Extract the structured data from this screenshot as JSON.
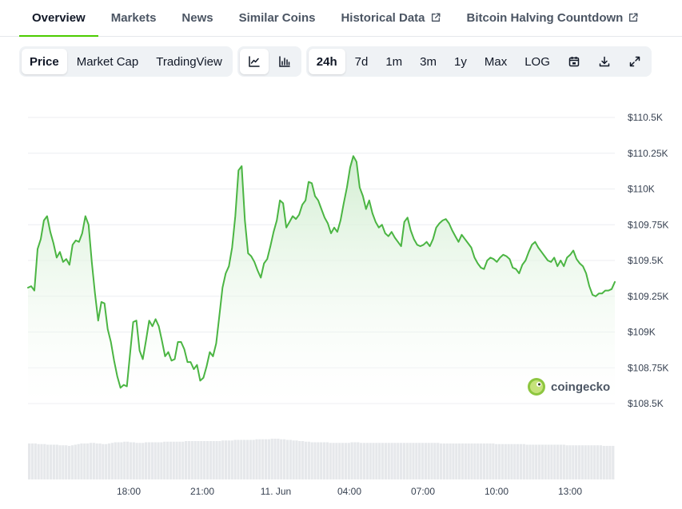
{
  "tabs": [
    {
      "label": "Overview",
      "active": true,
      "external": false
    },
    {
      "label": "Markets",
      "active": false,
      "external": false
    },
    {
      "label": "News",
      "active": false,
      "external": false
    },
    {
      "label": "Similar Coins",
      "active": false,
      "external": false
    },
    {
      "label": "Historical Data",
      "active": false,
      "external": true
    },
    {
      "label": "Bitcoin Halving Countdown",
      "active": false,
      "external": true
    }
  ],
  "toolbar": {
    "metric_options": [
      "Price",
      "Market Cap",
      "TradingView"
    ],
    "selected_metric": "Price",
    "chart_style_icons": [
      "line-chart-icon",
      "candlestick-chart-icon"
    ],
    "selected_style": "line-chart-icon",
    "range_options": [
      "24h",
      "7d",
      "1m",
      "3m",
      "1y",
      "Max",
      "LOG"
    ],
    "selected_range": "24h",
    "tool_icons": [
      "calendar-icon",
      "download-icon",
      "expand-icon"
    ]
  },
  "colors": {
    "line": "#4bb543",
    "fill_top": "#cdeccc",
    "accent": "#4bcc00",
    "volume": "#e6e8eb"
  },
  "watermark": "coingecko",
  "chart_data": {
    "type": "area",
    "series": [
      {
        "values": [
          109310,
          109320,
          109290,
          109580,
          109650,
          109780,
          109810,
          109700,
          109620,
          109520,
          109560,
          109490,
          109510,
          109470,
          109610,
          109640,
          109630,
          109690,
          109810,
          109750,
          109490,
          109270,
          109080,
          109210,
          109200,
          109020,
          108930,
          108800,
          108690,
          108610,
          108630,
          108620,
          108850,
          109070,
          109080,
          108870,
          108810,
          108940,
          109080,
          109040,
          109090,
          109040,
          108940,
          108830,
          108860,
          108800,
          108810,
          108930,
          108930,
          108880,
          108790,
          108790,
          108740,
          108770,
          108660,
          108680,
          108760,
          108860,
          108830,
          108920,
          109110,
          109310,
          109410,
          109460,
          109590,
          109810,
          110130,
          110160,
          109780,
          109550,
          109530,
          109490,
          109430,
          109380,
          109480,
          109510,
          109600,
          109700,
          109780,
          109920,
          109900,
          109730,
          109770,
          109810,
          109790,
          109820,
          109890,
          109920,
          110050,
          110040,
          109950,
          109920,
          109860,
          109800,
          109760,
          109690,
          109730,
          109700,
          109780,
          109900,
          110010,
          110150,
          110230,
          110190,
          110010,
          109950,
          109860,
          109920,
          109830,
          109770,
          109730,
          109750,
          109690,
          109670,
          109700,
          109660,
          109630,
          109600,
          109770,
          109800,
          109710,
          109650,
          109610,
          109600,
          109610,
          109630,
          109600,
          109650,
          109730,
          109760,
          109780,
          109790,
          109760,
          109710,
          109670,
          109630,
          109680,
          109650,
          109620,
          109590,
          109520,
          109480,
          109450,
          109440,
          109500,
          109520,
          109510,
          109490,
          109520,
          109540,
          109530,
          109510,
          109450,
          109440,
          109410,
          109470,
          109500,
          109560,
          109610,
          109630,
          109590,
          109560,
          109530,
          109500,
          109490,
          109520,
          109460,
          109500,
          109460,
          109520,
          109540,
          109570,
          109510,
          109480,
          109460,
          109410,
          109320,
          109260,
          109250,
          109270,
          109270,
          109290,
          109290,
          109300,
          109350
        ]
      }
    ],
    "volume": [
      60,
      60,
      60,
      59,
      59,
      59,
      58,
      58,
      58,
      58,
      57,
      57,
      57,
      56,
      57,
      58,
      59,
      60,
      60,
      60,
      61,
      61,
      60,
      60,
      59,
      59,
      60,
      61,
      62,
      62,
      62,
      63,
      63,
      62,
      62,
      61,
      61,
      61,
      62,
      62,
      62,
      62,
      62,
      62,
      63,
      63,
      63,
      63,
      63,
      63,
      63,
      64,
      64,
      64,
      64,
      64,
      64,
      64,
      64,
      64,
      64,
      64,
      64,
      65,
      65,
      65,
      65,
      66,
      66,
      66,
      66,
      66,
      66,
      66,
      67,
      67,
      67,
      67,
      67,
      68,
      68,
      68,
      67,
      67,
      66,
      66,
      65,
      65,
      64,
      64,
      63,
      63,
      62,
      62,
      62,
      62,
      62,
      62,
      61,
      61,
      61,
      61,
      61,
      61,
      61,
      62,
      62,
      62,
      61,
      61,
      61,
      61,
      61,
      61,
      61,
      61,
      61,
      61,
      61,
      61,
      61,
      61,
      61,
      61,
      61,
      61,
      61,
      61,
      61,
      61,
      61,
      61,
      61,
      61,
      60,
      60,
      60,
      60,
      60,
      60,
      60,
      60,
      60,
      60,
      60,
      60,
      60,
      60,
      60,
      60,
      60,
      60,
      59,
      59,
      59,
      59,
      59,
      59,
      59,
      59,
      59,
      59,
      58,
      58,
      58,
      58,
      58,
      58,
      58,
      58,
      58,
      58,
      58,
      58,
      58,
      57,
      57,
      57,
      57,
      57,
      57,
      57,
      57,
      57,
      57,
      57,
      57,
      56,
      56,
      56,
      56
    ],
    "y_ticks": [
      {
        "value": 110500,
        "label": "$110.5K"
      },
      {
        "value": 110250,
        "label": "$110.25K"
      },
      {
        "value": 110000,
        "label": "$110K"
      },
      {
        "value": 109750,
        "label": "$109.75K"
      },
      {
        "value": 109500,
        "label": "$109.5K"
      },
      {
        "value": 109250,
        "label": "$109.25K"
      },
      {
        "value": 109000,
        "label": "$109K"
      },
      {
        "value": 108750,
        "label": "$108.75K"
      },
      {
        "value": 108500,
        "label": "$108.5K"
      }
    ],
    "ylim": [
      108500,
      110500
    ],
    "x_ticks": [
      {
        "label": "18:00"
      },
      {
        "label": "21:00"
      },
      {
        "label": "11. Jun"
      },
      {
        "label": "04:00"
      },
      {
        "label": "07:00"
      },
      {
        "label": "10:00"
      },
      {
        "label": "13:00"
      }
    ],
    "grid": true
  }
}
